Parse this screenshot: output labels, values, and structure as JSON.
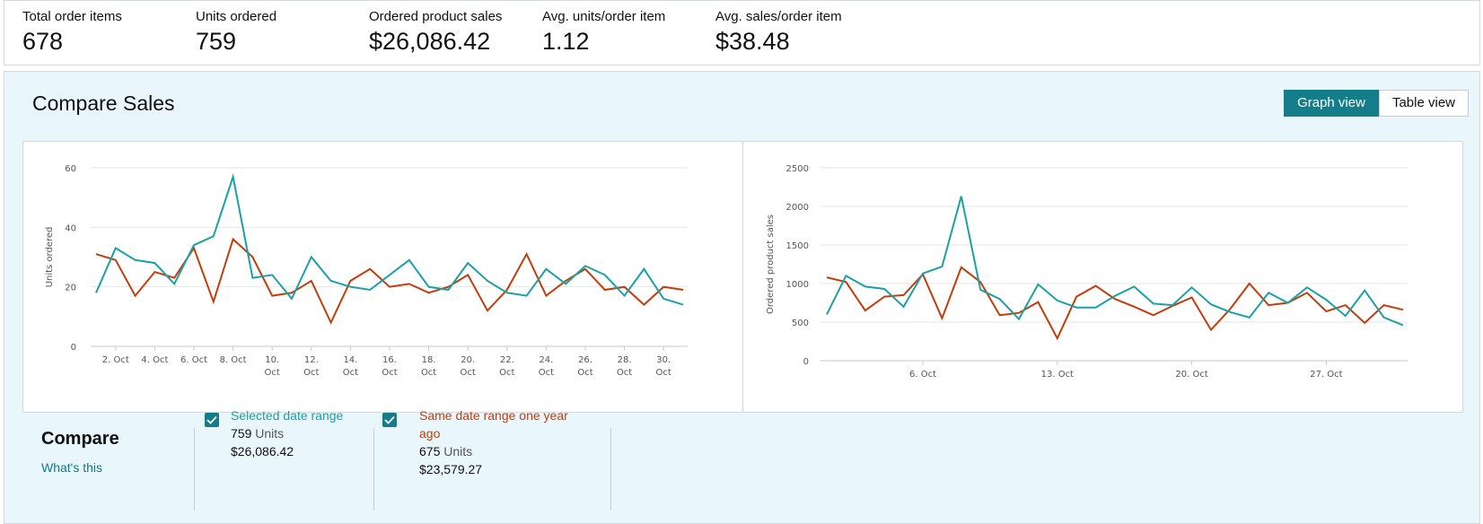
{
  "metrics": [
    {
      "label": "Total order items",
      "value": "678"
    },
    {
      "label": "Units ordered",
      "value": "759"
    },
    {
      "label": "Ordered product sales",
      "value": "$26,086.42"
    },
    {
      "label": "Avg. units/order item",
      "value": "1.12"
    },
    {
      "label": "Avg. sales/order item",
      "value": "$38.48"
    }
  ],
  "panel": {
    "title": "Compare Sales",
    "graph_view": "Graph view",
    "table_view": "Table view"
  },
  "compare": {
    "title": "Compare",
    "link": "What's this",
    "selected": {
      "label": "Selected date range",
      "units": "759",
      "units_word": "Units",
      "sales": "$26,086.42",
      "color": "#1aa1a7"
    },
    "last_year": {
      "label": "Same date range one year ago",
      "units": "675",
      "units_word": "Units",
      "sales": "$23,579.27",
      "color": "#c13e0b"
    }
  },
  "chart_data": [
    {
      "type": "line",
      "ylabel": "Units ordered",
      "ylim": [
        0,
        60
      ],
      "yticks": [
        0,
        20,
        40,
        60
      ],
      "x": [
        1,
        2,
        3,
        4,
        5,
        6,
        7,
        8,
        9,
        10,
        11,
        12,
        13,
        14,
        15,
        16,
        17,
        18,
        19,
        20,
        21,
        22,
        23,
        24,
        25,
        26,
        27,
        28,
        29,
        30,
        31
      ],
      "xtick_labels": [
        {
          "x": 2,
          "label": [
            "2. Oct"
          ]
        },
        {
          "x": 4,
          "label": [
            "4. Oct"
          ]
        },
        {
          "x": 6,
          "label": [
            "6. Oct"
          ]
        },
        {
          "x": 8,
          "label": [
            "8. Oct"
          ]
        },
        {
          "x": 10,
          "label": [
            "10.",
            "Oct"
          ]
        },
        {
          "x": 12,
          "label": [
            "12.",
            "Oct"
          ]
        },
        {
          "x": 14,
          "label": [
            "14.",
            "Oct"
          ]
        },
        {
          "x": 16,
          "label": [
            "16.",
            "Oct"
          ]
        },
        {
          "x": 18,
          "label": [
            "18.",
            "Oct"
          ]
        },
        {
          "x": 20,
          "label": [
            "20.",
            "Oct"
          ]
        },
        {
          "x": 22,
          "label": [
            "22.",
            "Oct"
          ]
        },
        {
          "x": 24,
          "label": [
            "24.",
            "Oct"
          ]
        },
        {
          "x": 26,
          "label": [
            "26.",
            "Oct"
          ]
        },
        {
          "x": 28,
          "label": [
            "28.",
            "Oct"
          ]
        },
        {
          "x": 30,
          "label": [
            "30.",
            "Oct"
          ]
        }
      ],
      "grid": true,
      "series": [
        {
          "name": "Selected date range",
          "color": "#1aa1a7",
          "values": [
            18,
            33,
            29,
            28,
            21,
            34,
            37,
            57,
            23,
            24,
            16,
            30,
            22,
            20,
            19,
            24,
            29,
            20,
            19,
            28,
            22,
            18,
            17,
            26,
            21,
            27,
            24,
            17,
            26,
            16,
            14
          ]
        },
        {
          "name": "Same date range one year ago",
          "color": "#c13e0b",
          "values": [
            31,
            29,
            17,
            25,
            23,
            33,
            15,
            36,
            30,
            17,
            18,
            22,
            8,
            22,
            26,
            20,
            21,
            18,
            20,
            24,
            12,
            19,
            31,
            17,
            22,
            26,
            19,
            20,
            14,
            20,
            19
          ]
        }
      ]
    },
    {
      "type": "line",
      "ylabel": "Ordered product sales",
      "ylim": [
        0,
        2500
      ],
      "yticks": [
        0,
        500,
        1000,
        1500,
        2000,
        2500
      ],
      "x": [
        1,
        2,
        3,
        4,
        5,
        6,
        7,
        8,
        9,
        10,
        11,
        12,
        13,
        14,
        15,
        16,
        17,
        18,
        19,
        20,
        21,
        22,
        23,
        24,
        25,
        26,
        27,
        28,
        29,
        30,
        31
      ],
      "xtick_labels": [
        {
          "x": 6,
          "label": [
            "6. Oct"
          ]
        },
        {
          "x": 13,
          "label": [
            "13. Oct"
          ]
        },
        {
          "x": 20,
          "label": [
            "20. Oct"
          ]
        },
        {
          "x": 27,
          "label": [
            "27. Oct"
          ]
        }
      ],
      "grid": true,
      "series": [
        {
          "name": "Selected date range",
          "color": "#1aa1a7",
          "values": [
            600,
            1100,
            960,
            930,
            700,
            1130,
            1220,
            2130,
            920,
            800,
            540,
            990,
            780,
            690,
            690,
            840,
            960,
            740,
            720,
            950,
            730,
            630,
            560,
            880,
            750,
            950,
            790,
            580,
            910,
            560,
            460
          ]
        },
        {
          "name": "Same date range one year ago",
          "color": "#c13e0b",
          "values": [
            1080,
            1020,
            650,
            830,
            850,
            1120,
            550,
            1210,
            1020,
            590,
            620,
            760,
            290,
            830,
            970,
            800,
            700,
            590,
            710,
            820,
            400,
            670,
            1000,
            720,
            750,
            880,
            640,
            720,
            490,
            720,
            660
          ]
        }
      ]
    }
  ]
}
